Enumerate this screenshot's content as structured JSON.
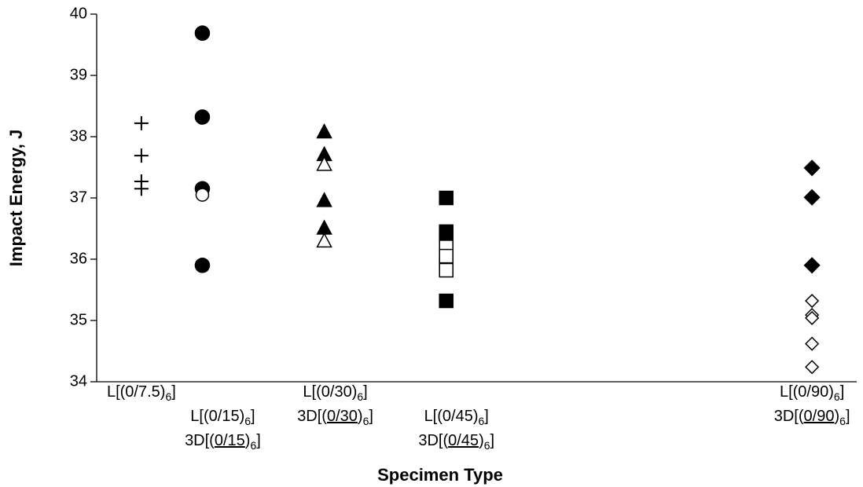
{
  "chart_data": {
    "type": "scatter",
    "y_label": "Impact Energy, J",
    "x_label": "Specimen Type",
    "ylim": [
      34,
      40
    ],
    "yticks": [
      34,
      35,
      36,
      37,
      38,
      39,
      40
    ],
    "xlim": [
      2,
      95.5
    ],
    "category_x": [
      7.5,
      15,
      30,
      45,
      90
    ],
    "categories": [
      [
        [
          {
            "text": "L[(0/7.5)"
          },
          {
            "text": "6",
            "sub": true
          },
          {
            "text": "]"
          }
        ]
      ],
      [
        [
          {
            "text": "L[(0/15)"
          },
          {
            "text": "6",
            "sub": true
          },
          {
            "text": "]"
          }
        ],
        [
          {
            "text": "3D[("
          },
          {
            "text": "0/15",
            "underline": true
          },
          {
            "text": ")"
          },
          {
            "text": "6",
            "sub": true
          },
          {
            "text": "]"
          }
        ]
      ],
      [
        [
          {
            "text": "L[(0/30)"
          },
          {
            "text": "6",
            "sub": true
          },
          {
            "text": "]"
          }
        ],
        [
          {
            "text": "3D[("
          },
          {
            "text": "0/30",
            "underline": true
          },
          {
            "text": ")"
          },
          {
            "text": "6",
            "sub": true
          },
          {
            "text": "]"
          }
        ]
      ],
      [
        [
          {
            "text": "L[(0/45)"
          },
          {
            "text": "6",
            "sub": true
          },
          {
            "text": "]"
          }
        ],
        [
          {
            "text": "3D[("
          },
          {
            "text": "0/45",
            "underline": true
          },
          {
            "text": ")"
          },
          {
            "text": "6",
            "sub": true
          },
          {
            "text": "]"
          }
        ]
      ],
      [
        [
          {
            "text": "L[(0/90)"
          },
          {
            "text": "6",
            "sub": true
          },
          {
            "text": "]"
          }
        ],
        [
          {
            "text": "3D[("
          },
          {
            "text": "0/90",
            "underline": true
          },
          {
            "text": ")"
          },
          {
            "text": "6",
            "sub": true
          },
          {
            "text": "]"
          }
        ]
      ]
    ],
    "series": [
      {
        "marker": "plus",
        "filled": false,
        "color": "#000000",
        "x": [
          7.5,
          7.5,
          7.5,
          7.5
        ],
        "values": [
          38.22,
          37.69,
          37.27,
          37.15
        ]
      },
      {
        "marker": "circle",
        "filled": true,
        "color": "#000000",
        "x": [
          15,
          15,
          15,
          15
        ],
        "values": [
          39.69,
          38.32,
          37.15,
          35.9
        ]
      },
      {
        "marker": "circle",
        "filled": false,
        "color": "#000000",
        "x": [
          15
        ],
        "values": [
          37.05
        ]
      },
      {
        "marker": "triangle",
        "filled": true,
        "color": "#000000",
        "x": [
          30,
          30,
          30,
          30
        ],
        "values": [
          38.07,
          37.7,
          36.95,
          36.5
        ]
      },
      {
        "marker": "triangle",
        "filled": false,
        "color": "#000000",
        "x": [
          30,
          30
        ],
        "values": [
          37.54,
          36.29
        ]
      },
      {
        "marker": "square",
        "filled": true,
        "color": "#000000",
        "x": [
          45,
          45,
          45,
          45,
          45,
          45
        ],
        "values": [
          37.0,
          36.45,
          36.38,
          35.98,
          35.9,
          35.32
        ]
      },
      {
        "marker": "square",
        "filled": false,
        "color": "#000000",
        "x": [
          45,
          45,
          45
        ],
        "values": [
          36.2,
          36.05,
          35.82
        ]
      },
      {
        "marker": "diamond",
        "filled": true,
        "color": "#000000",
        "x": [
          90,
          90,
          90
        ],
        "values": [
          37.49,
          37.01,
          35.9
        ]
      },
      {
        "marker": "diamond",
        "filled": false,
        "color": "#000000",
        "x": [
          90,
          90,
          90,
          90,
          90
        ],
        "values": [
          35.32,
          35.09,
          35.04,
          34.62,
          34.24
        ]
      }
    ]
  }
}
